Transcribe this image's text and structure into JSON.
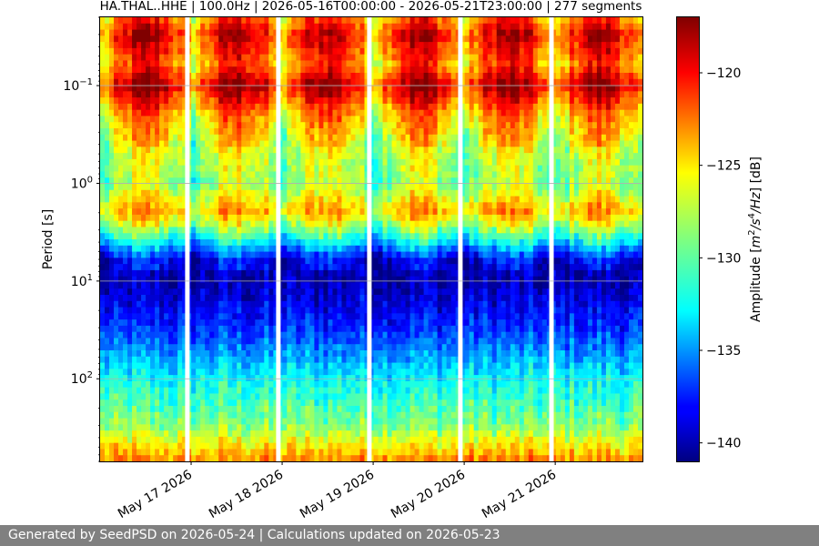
{
  "title": "HA.THAL..HHE | 100.0Hz | 2026-05-16T00:00:00 - 2026-05-21T23:00:00 | 277 segments",
  "footer": "Generated by SeedPSD on 2026-05-24 | Calculations updated on 2026-05-23",
  "chart_data": {
    "type": "heatmap",
    "title": "HA.THAL..HHE | 100.0Hz | 2026-05-16T00:00:00 - 2026-05-21T23:00:00 | 277 segments",
    "xlabel": "",
    "ylabel": "Period [s]",
    "y_scale": "log",
    "y_inverted": true,
    "ylim": [
      0.02,
      700
    ],
    "y_ticks": [
      {
        "value": 0.1,
        "label": "10",
        "exp": "−1"
      },
      {
        "value": 1,
        "label": "10",
        "exp": "0"
      },
      {
        "value": 10,
        "label": "10",
        "exp": "1"
      },
      {
        "value": 100,
        "label": "10",
        "exp": "2"
      }
    ],
    "x_range": [
      "2026-05-16T00:00:00",
      "2026-05-21T23:00:00"
    ],
    "x_ticks": [
      "May 17 2026",
      "May 18 2026",
      "May 19 2026",
      "May 20 2026",
      "May 21 2026"
    ],
    "grid": true,
    "data_gaps": [
      "2026-05-16T23:00",
      "2026-05-17T23:00",
      "2026-05-18T23:00",
      "2026-05-19T23:00",
      "2026-05-20T23:00"
    ],
    "colormap": "jet",
    "colorbar": {
      "label": "Amplitude [m²/s⁴/Hz] [dB]",
      "label_prefix": "Amplitude [",
      "label_suffix": "] [dB]",
      "min": -141,
      "max": -117,
      "ticks": [
        "−120",
        "−125",
        "−130",
        "−135",
        "−140"
      ]
    },
    "spectral_profile": [
      {
        "period": 0.02,
        "db": -124
      },
      {
        "period": 0.03,
        "db": -121
      },
      {
        "period": 0.06,
        "db": -124
      },
      {
        "period": 0.1,
        "db": -120
      },
      {
        "period": 0.2,
        "db": -125
      },
      {
        "period": 0.5,
        "db": -128
      },
      {
        "period": 1,
        "db": -129
      },
      {
        "period": 2,
        "db": -125
      },
      {
        "period": 4,
        "db": -133
      },
      {
        "period": 6,
        "db": -139
      },
      {
        "period": 10,
        "db": -140
      },
      {
        "period": 30,
        "db": -137
      },
      {
        "period": 100,
        "db": -132
      },
      {
        "period": 300,
        "db": -129
      },
      {
        "period": 700,
        "db": -123
      }
    ]
  }
}
